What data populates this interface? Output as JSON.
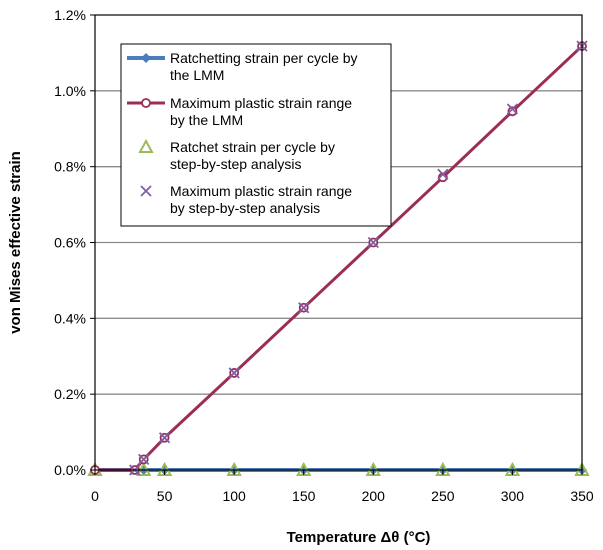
{
  "chart_data": {
    "type": "line",
    "xlabel": "Temperature Δθ (°C)",
    "ylabel": "von Mises effective strain",
    "xlim": [
      0,
      350
    ],
    "ylim": [
      0,
      1.2
    ],
    "x_ticks": [
      0,
      50,
      100,
      150,
      200,
      250,
      300,
      350
    ],
    "y_ticks": [
      "0.0%",
      "0.2%",
      "0.4%",
      "0.6%",
      "0.8%",
      "1.0%",
      "1.2%"
    ],
    "y_tick_values": [
      0,
      0.2,
      0.4,
      0.6,
      0.8,
      1.0,
      1.2
    ],
    "grid": "horizontal",
    "legend_placement": "top-left",
    "series": [
      {
        "name": "Ratchetting strain per cycle by the LMM",
        "marker": "diamond",
        "color": "#4a7ebb",
        "x": [
          0,
          30,
          35,
          50,
          100,
          150,
          200,
          250,
          300,
          350
        ],
        "y": [
          0,
          0,
          0,
          0,
          0,
          0,
          0,
          0,
          0,
          0
        ]
      },
      {
        "name": "Maximum plastic strain range by the LMM",
        "marker": "circle",
        "color": "#9b2d57",
        "x": [
          0,
          28.5,
          35,
          50,
          100,
          150,
          200,
          250,
          300,
          350
        ],
        "y": [
          0,
          0,
          0.028,
          0.085,
          0.256,
          0.428,
          0.6,
          0.772,
          0.946,
          1.118
        ]
      },
      {
        "name": "Ratchet strain per cycle by step-by-step analysis",
        "marker": "triangle",
        "color": "#9bbb59",
        "x": [
          0,
          35,
          50,
          100,
          150,
          200,
          250,
          300,
          350
        ],
        "y": [
          0,
          0,
          0,
          0,
          0,
          0,
          0,
          0,
          0
        ]
      },
      {
        "name": "Maximum plastic strain range by step-by-step analysis",
        "marker": "x",
        "color": "#7d5fa5",
        "x": [
          28.5,
          35,
          50,
          100,
          150,
          200,
          250,
          300,
          350
        ],
        "y": [
          0,
          0.028,
          0.085,
          0.256,
          0.428,
          0.6,
          0.78,
          0.952,
          1.118
        ]
      }
    ],
    "legend_lines": [
      [
        "Ratchetting strain per cycle by",
        "the LMM"
      ],
      [
        "Maximum plastic strain range",
        "by the LMM"
      ],
      [
        "Ratchet strain per cycle by",
        "step-by-step analysis"
      ],
      [
        "Maximum plastic strain range",
        "by step-by-step analysis"
      ]
    ]
  }
}
